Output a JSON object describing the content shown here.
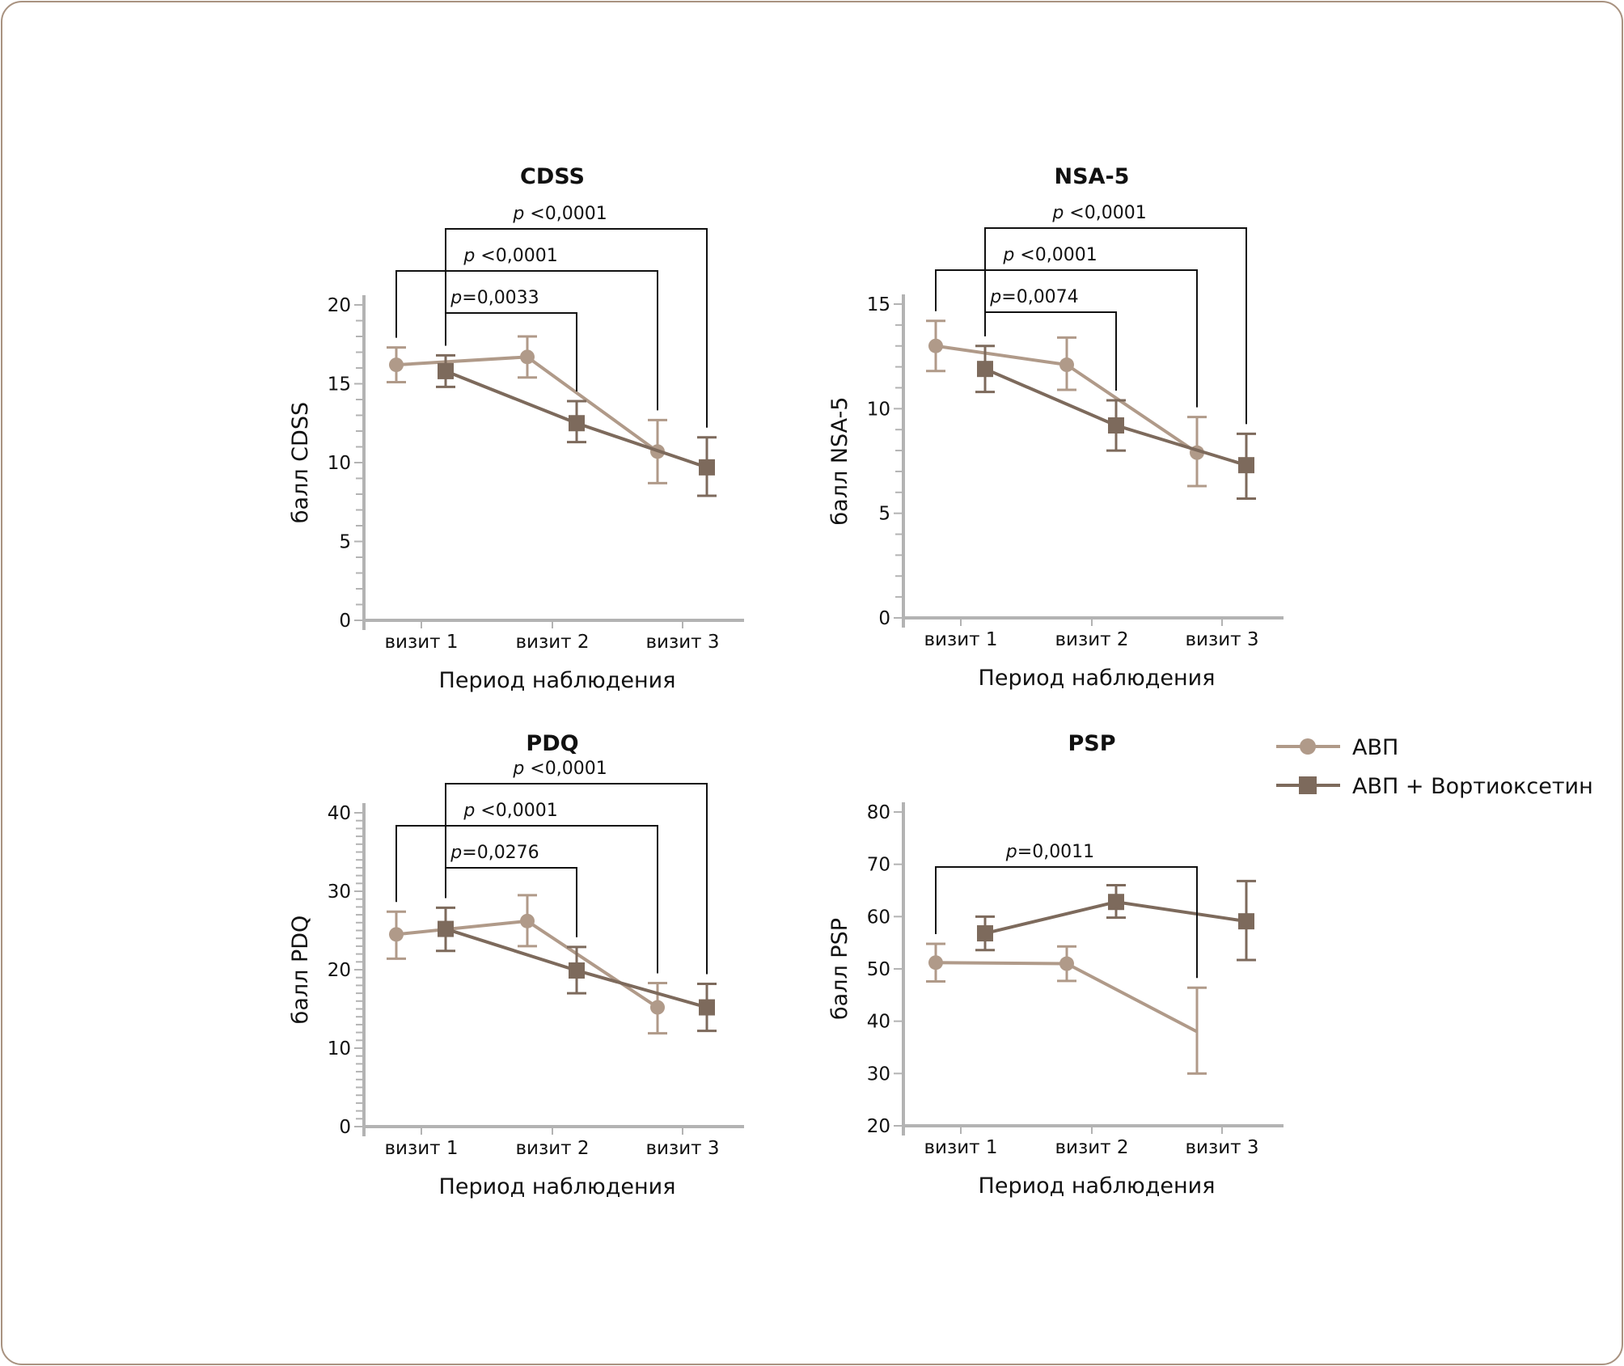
{
  "legend": {
    "placement": "right-middle",
    "items": [
      {
        "label": "АВП",
        "marker": "circle",
        "color": "#b09a89"
      },
      {
        "label": "АВП + Вортиоксетин",
        "marker": "square",
        "color": "#7d6a5c"
      }
    ]
  },
  "colors": {
    "frame": "#a89280",
    "axis": "#b3b3b3",
    "bracket": "#111111"
  },
  "chart_data": [
    {
      "type": "line",
      "title": "CDSS",
      "xlabel": "Период наблюдения",
      "ylabel": "балл CDSS",
      "categories": [
        "визит 1",
        "визит 2",
        "визит 3"
      ],
      "ylim": [
        0,
        20
      ],
      "yticks": [
        0,
        5,
        10,
        15,
        20
      ],
      "minor_step": 1,
      "grid": false,
      "series": [
        {
          "name": "АВП",
          "values": [
            16.2,
            16.7,
            10.7
          ],
          "err_low": [
            15.1,
            15.4,
            8.7
          ],
          "err_high": [
            17.3,
            18.0,
            12.7
          ]
        },
        {
          "name": "АВП + Вортиоксетин",
          "values": [
            15.8,
            12.5,
            9.7
          ],
          "err_low": [
            14.8,
            11.3,
            7.9
          ],
          "err_high": [
            16.8,
            13.9,
            11.6
          ]
        }
      ],
      "annotations": [
        {
          "text_italic": "p",
          "text": " <0,0001",
          "from": {
            "series": 1,
            "cat": 0
          },
          "to": {
            "series": 1,
            "cat": 2
          },
          "level": 3
        },
        {
          "text_italic": "p",
          "text": " <0,0001",
          "from": {
            "series": 0,
            "cat": 0
          },
          "to": {
            "series": 0,
            "cat": 2
          },
          "level": 2
        },
        {
          "text_italic": "p",
          "text": "=0,0033",
          "from": {
            "series": 1,
            "cat": 0
          },
          "to": {
            "series": 1,
            "cat": 1
          },
          "level": 1
        }
      ]
    },
    {
      "type": "line",
      "title": "NSA-5",
      "xlabel": "Период наблюдения",
      "ylabel": "балл NSA-5",
      "categories": [
        "визит 1",
        "визит 2",
        "визит 3"
      ],
      "ylim": [
        0,
        15
      ],
      "yticks": [
        0,
        5,
        10,
        15
      ],
      "minor_step": 1,
      "grid": false,
      "series": [
        {
          "name": "АВП",
          "values": [
            13.0,
            12.1,
            7.9
          ],
          "err_low": [
            11.8,
            10.9,
            6.3
          ],
          "err_high": [
            14.2,
            13.4,
            9.6
          ]
        },
        {
          "name": "АВП + Вортиоксетин",
          "values": [
            11.9,
            9.2,
            7.3
          ],
          "err_low": [
            10.8,
            8.0,
            5.7
          ],
          "err_high": [
            13.0,
            10.4,
            8.8
          ]
        }
      ],
      "annotations": [
        {
          "text_italic": "p",
          "text": " <0,0001",
          "from": {
            "series": 1,
            "cat": 0
          },
          "to": {
            "series": 1,
            "cat": 2
          },
          "level": 3
        },
        {
          "text_italic": "p",
          "text": " <0,0001",
          "from": {
            "series": 0,
            "cat": 0
          },
          "to": {
            "series": 0,
            "cat": 2
          },
          "level": 2
        },
        {
          "text_italic": "p",
          "text": "=0,0074",
          "from": {
            "series": 1,
            "cat": 0
          },
          "to": {
            "series": 1,
            "cat": 1
          },
          "level": 1
        }
      ]
    },
    {
      "type": "line",
      "title": "PDQ",
      "xlabel": "Период наблюдения",
      "ylabel": "балл PDQ",
      "categories": [
        "визит 1",
        "визит 2",
        "визит 3"
      ],
      "ylim": [
        0,
        40
      ],
      "yticks": [
        0,
        10,
        20,
        30,
        40
      ],
      "minor_step": 1,
      "grid": false,
      "series": [
        {
          "name": "АВП",
          "values": [
            24.5,
            26.2,
            15.2
          ],
          "err_low": [
            21.4,
            23.0,
            11.9
          ],
          "err_high": [
            27.4,
            29.5,
            18.3
          ]
        },
        {
          "name": "АВП + Вортиоксетин",
          "values": [
            25.2,
            19.9,
            15.2
          ],
          "err_low": [
            22.4,
            17.0,
            12.2
          ],
          "err_high": [
            27.9,
            22.9,
            18.2
          ]
        }
      ],
      "annotations": [
        {
          "text_italic": "p",
          "text": " <0,0001",
          "from": {
            "series": 1,
            "cat": 0
          },
          "to": {
            "series": 1,
            "cat": 2
          },
          "level": 3
        },
        {
          "text_italic": "p",
          "text": " <0,0001",
          "from": {
            "series": 0,
            "cat": 0
          },
          "to": {
            "series": 0,
            "cat": 2
          },
          "level": 2
        },
        {
          "text_italic": "p",
          "text": "=0,0276",
          "from": {
            "series": 1,
            "cat": 0
          },
          "to": {
            "series": 1,
            "cat": 1
          },
          "level": 1
        }
      ]
    },
    {
      "type": "line",
      "title": "PSP",
      "xlabel": "Период наблюдения",
      "ylabel": "балл PSP",
      "categories": [
        "визит 1",
        "визит 2",
        "визит 3"
      ],
      "ylim": [
        20,
        80
      ],
      "yticks": [
        20,
        30,
        40,
        50,
        60,
        70,
        80
      ],
      "minor_step": null,
      "grid": false,
      "series": [
        {
          "name": "АВП",
          "values": [
            51.2,
            51.0,
            38.0
          ],
          "err_low": [
            47.6,
            47.7,
            30.0
          ],
          "err_high": [
            54.8,
            54.3,
            46.4
          ],
          "hidden_markers": [
            2
          ]
        },
        {
          "name": "АВП + Вортиоксетин",
          "values": [
            56.8,
            62.8,
            59.1
          ],
          "err_low": [
            53.6,
            59.8,
            51.7
          ],
          "err_high": [
            60.0,
            66.0,
            66.8
          ]
        }
      ],
      "annotations": [
        {
          "text_italic": "p",
          "text": "=0,0011",
          "from": {
            "series": 0,
            "cat": 0
          },
          "to": {
            "series": 0,
            "cat": 2
          },
          "level": 1
        }
      ]
    }
  ]
}
